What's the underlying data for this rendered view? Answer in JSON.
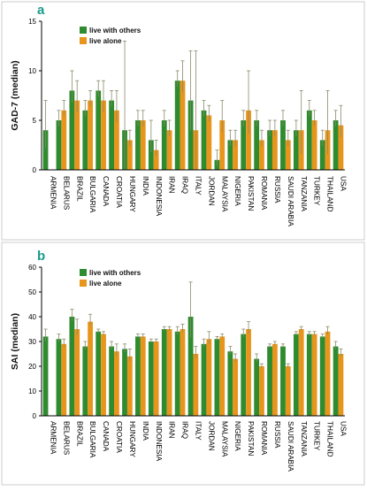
{
  "colors": {
    "live_with_others": "#2e8b2e",
    "live_alone": "#e8951c",
    "panel_label": "#1a9a8a",
    "axis": "#000000",
    "error_bar": "#8a8a6a",
    "frame": "#cccccc"
  },
  "chart_data": [
    {
      "panel_label": "a",
      "type": "bar",
      "ylabel": "GAD-7 (median)",
      "ylim": [
        0,
        15
      ],
      "yticks": [
        0,
        5,
        10,
        15
      ],
      "legend_position": "top-left",
      "categories": [
        "ARMENIA",
        "BELARUS",
        "BRAZIL",
        "BULGARIA",
        "CANADA",
        "CROATIA",
        "HUNGARY",
        "INDIA",
        "INDONESIA",
        "IRAN",
        "IRAQ",
        "ITALY",
        "JORDAN",
        "MALAYSIA",
        "NIGERIA",
        "PAKISTAN",
        "ROMANIA",
        "RUSSIA",
        "SAUDI ARABIA",
        "TANZANIA",
        "TURKEY",
        "THAILAND",
        "USA"
      ],
      "series": [
        {
          "name": "live with others",
          "values": [
            4,
            5,
            8,
            6,
            8,
            7,
            4,
            5,
            3,
            5,
            9,
            7,
            6,
            1,
            3,
            5,
            5,
            4,
            5,
            4,
            6,
            3,
            5
          ]
        },
        {
          "name": "live alone",
          "values": [
            null,
            6,
            7,
            7,
            7,
            6,
            3,
            5,
            2,
            4,
            9,
            4,
            5.5,
            5,
            3,
            6,
            3,
            4,
            3,
            4,
            5,
            4,
            4.5
          ]
        }
      ]
    },
    {
      "panel_label": "b",
      "type": "bar",
      "ylabel": "SAI (median)",
      "ylim": [
        0,
        60
      ],
      "yticks": [
        0,
        10,
        20,
        30,
        40,
        50,
        60
      ],
      "legend_position": "top-left",
      "categories": [
        "ARMENIA",
        "BELARUS",
        "BRAZIL",
        "BULGARIA",
        "CANADA",
        "CROATIA",
        "HUNGARY",
        "INDIA",
        "INDONESIA",
        "IRAN",
        "IRAQ",
        "ITALY",
        "JORDAN",
        "MALAYSIA",
        "NIGERIA",
        "PAKISTAN",
        "ROMANIA",
        "RUSSIA",
        "SAUDI ARABIA",
        "TANZANIA",
        "TURKEY",
        "THAILAND",
        "USA"
      ],
      "series": [
        {
          "name": "live with others",
          "values": [
            32,
            31,
            40,
            28,
            34,
            28,
            27,
            32,
            30,
            35,
            34,
            40,
            29,
            31,
            26,
            33,
            23,
            28,
            28,
            33,
            33,
            32,
            28
          ]
        },
        {
          "name": "live alone",
          "values": [
            null,
            29,
            35,
            38,
            33,
            26,
            24,
            32,
            30,
            35,
            35,
            25,
            31,
            32,
            23,
            35,
            20,
            29,
            20,
            35,
            33,
            34,
            25
          ]
        }
      ]
    }
  ]
}
